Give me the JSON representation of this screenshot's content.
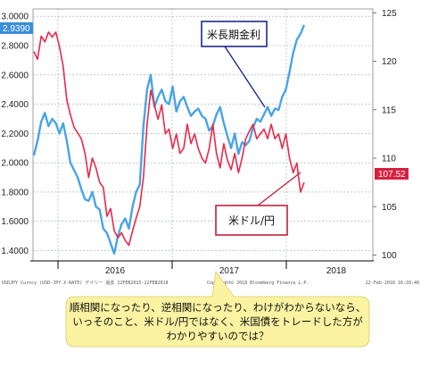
{
  "chart_data": {
    "type": "line",
    "x_labels": [
      "2016",
      "2017",
      "2018"
    ],
    "left_axis": {
      "ticks": [
        "3.0000",
        "2.8000",
        "2.6000",
        "2.4000",
        "2.2000",
        "2.0000",
        "1.8000",
        "1.6000",
        "1.4000"
      ],
      "ylim": [
        1.33,
        3.05
      ]
    },
    "right_axis": {
      "ticks": [
        "125",
        "120",
        "115",
        "110",
        "105",
        "100"
      ],
      "ylim": [
        99.4,
        125.4
      ]
    },
    "series": [
      {
        "name": "米長期金利",
        "color": "#4aa3e6",
        "axis": "left",
        "last_value_label": "2.9390",
        "values": [
          2.05,
          2.15,
          2.28,
          2.34,
          2.25,
          2.3,
          2.27,
          2.2,
          2.27,
          2.15,
          2.0,
          1.95,
          1.9,
          1.82,
          1.75,
          1.74,
          1.8,
          1.7,
          1.68,
          1.55,
          1.52,
          1.45,
          1.38,
          1.5,
          1.58,
          1.62,
          1.55,
          1.7,
          1.8,
          1.85,
          2.25,
          2.5,
          2.6,
          2.38,
          2.45,
          2.5,
          2.42,
          2.4,
          2.52,
          2.35,
          2.42,
          2.45,
          2.38,
          2.32,
          2.35,
          2.37,
          2.32,
          2.3,
          2.22,
          2.25,
          2.33,
          2.38,
          2.27,
          2.18,
          2.1,
          2.2,
          2.06,
          2.14,
          2.12,
          2.15,
          2.24,
          2.3,
          2.28,
          2.33,
          2.38,
          2.32,
          2.37,
          2.36,
          2.45,
          2.5,
          2.62,
          2.75,
          2.84,
          2.88,
          2.94
        ]
      },
      {
        "name": "米ドル/円",
        "color": "#e8294a",
        "axis": "right",
        "last_value_label": "107.52",
        "values": [
          121.0,
          120.2,
          122.6,
          122.0,
          123.0,
          122.5,
          123.0,
          121.5,
          119.5,
          116.0,
          114.5,
          113.2,
          112.6,
          112.0,
          110.5,
          108.0,
          110.0,
          109.0,
          107.5,
          107.0,
          104.0,
          104.8,
          102.5,
          101.8,
          102.3,
          101.5,
          101.0,
          102.5,
          103.8,
          105.0,
          108.0,
          113.5,
          117.0,
          115.5,
          114.0,
          115.5,
          112.5,
          113.0,
          111.0,
          112.5,
          110.5,
          111.0,
          113.5,
          111.5,
          112.5,
          111.0,
          110.0,
          109.5,
          111.0,
          113.5,
          110.5,
          109.0,
          111.5,
          109.8,
          108.8,
          110.5,
          108.5,
          110.0,
          112.0,
          112.8,
          113.5,
          112.0,
          112.5,
          113.0,
          112.0,
          113.5,
          112.0,
          112.5,
          111.0,
          112.5,
          110.0,
          108.5,
          109.5,
          106.5,
          107.5
        ]
      }
    ]
  },
  "labels": {
    "yield_label": "米長期金利",
    "fx_label": "米ドル/円",
    "footer_left": "USDJPY Curncy (USD-JPY X-RATE) デイリー 過去 22FEB2015-22FEB2018",
    "footer_mid": "Copyright© 2018 Bloomberg Finance L.P.",
    "footer_right": "22-Feb-2018 16:39:40",
    "callout_line1": "順相関になったり、逆相関になったり、わけがわからないなら、",
    "callout_line2": "いっそのこと、米ドル/円ではなく、米国債をトレードした方が",
    "callout_line3": "わかりやすいのでは？"
  }
}
